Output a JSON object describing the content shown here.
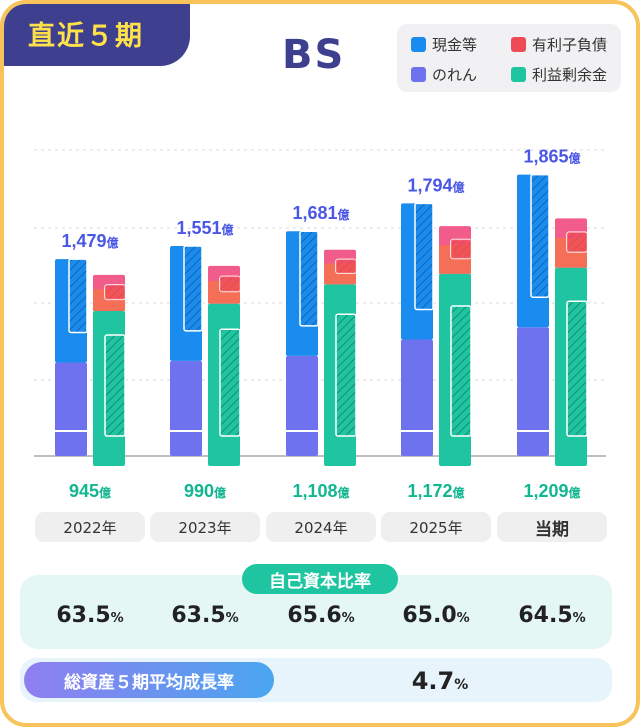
{
  "tag": "直近５期",
  "title": "BS",
  "unit": "億",
  "legend": [
    {
      "label": "現金等",
      "color": "#1a8cf0",
      "icon": "cash-swatch"
    },
    {
      "label": "有利子負債",
      "color": "#ef4b57",
      "icon": "debt-swatch"
    },
    {
      "label": "のれん",
      "color": "#6e72ef",
      "icon": "goodwill-swatch"
    },
    {
      "label": "利益剰余金",
      "color": "#1fc4a0",
      "icon": "retained-swatch"
    }
  ],
  "chart_data": {
    "type": "bar",
    "categories": [
      "2022年",
      "2023年",
      "2024年",
      "2025年",
      "当期"
    ],
    "totals": [
      1479,
      1551,
      1681,
      1794,
      1865
    ],
    "total_labels": [
      "1,479",
      "1,551",
      "1,681",
      "1,794",
      "1,865"
    ],
    "retained_labels": [
      "945",
      "990",
      "1,108",
      "1,172",
      "1,209"
    ],
    "assets": {
      "goodwill": [
        570,
        580,
        610,
        710,
        785
      ],
      "cash": [
        630,
        700,
        760,
        830,
        930
      ]
    },
    "liabilities": {
      "retained_earnings": [
        945,
        990,
        1108,
        1172,
        1209
      ],
      "interest_bearing_debt": [
        220,
        230,
        210,
        290,
        300
      ]
    }
  },
  "equity_ratio": {
    "title": "自己資本比率",
    "values": [
      "63.5",
      "63.5",
      "65.6",
      "65.0",
      "64.5"
    ],
    "unit": "%"
  },
  "growth": {
    "title": "総資産５期平均成長率",
    "value": "4.7",
    "unit": "%"
  }
}
